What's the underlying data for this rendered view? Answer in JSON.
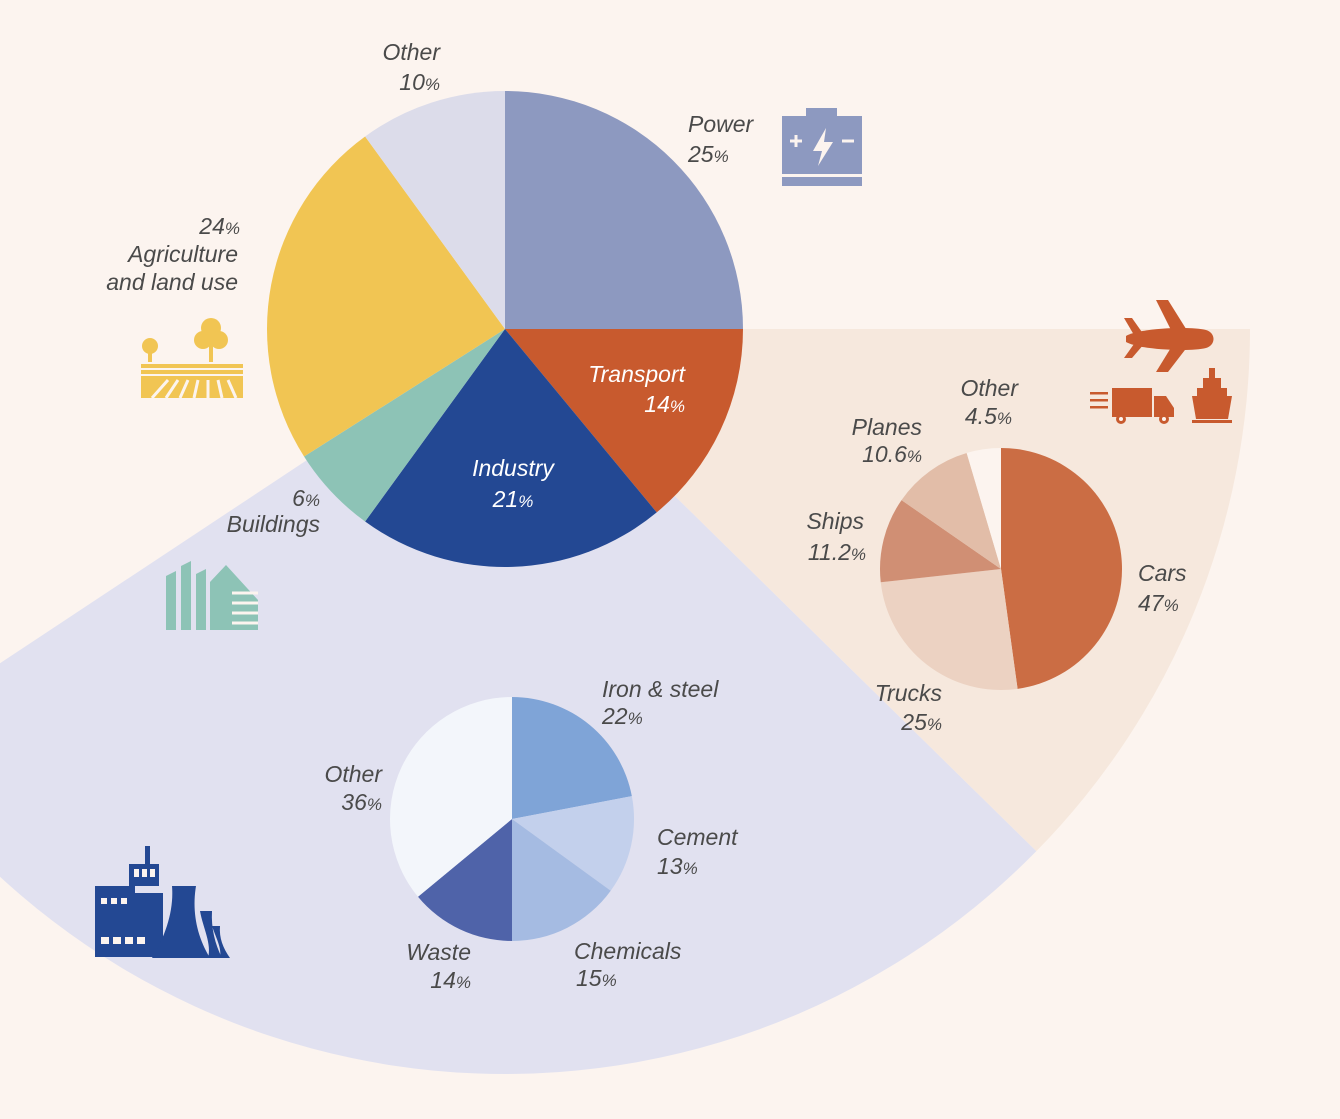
{
  "chart_data": [
    {
      "type": "pie",
      "title": "",
      "slices": [
        {
          "name": "Power",
          "value": 25,
          "label": "Power",
          "pct_text": "25",
          "color": "#8d99c0"
        },
        {
          "name": "Transport",
          "value": 14,
          "label": "Transport",
          "pct_text": "14",
          "color": "#c85a2e"
        },
        {
          "name": "Industry",
          "value": 21,
          "label": "Industry",
          "pct_text": "21",
          "color": "#234893"
        },
        {
          "name": "Buildings",
          "value": 6,
          "label": "Buildings",
          "pct_text": "6",
          "color": "#8dc3b6"
        },
        {
          "name": "Agriculture and land use",
          "value": 24,
          "label_line1": "Agriculture",
          "label_line2": "and land use",
          "pct_text": "24",
          "color": "#f1c553"
        },
        {
          "name": "Other",
          "value": 10,
          "label": "Other",
          "pct_text": "10",
          "color": "#dcdcea"
        }
      ]
    },
    {
      "type": "pie",
      "parent": "Transport",
      "slices": [
        {
          "name": "Cars",
          "value": 47,
          "label": "Cars",
          "pct_text": "47",
          "color": "#cb6d44"
        },
        {
          "name": "Trucks",
          "value": 25,
          "label": "Trucks",
          "pct_text": "25",
          "color": "#ecd2c2"
        },
        {
          "name": "Ships",
          "value": 11.2,
          "label": "Ships",
          "pct_text": "11.2",
          "color": "#d08f74"
        },
        {
          "name": "Planes",
          "value": 10.6,
          "label": "Planes",
          "pct_text": "10.6",
          "color": "#e2bda8"
        },
        {
          "name": "Other",
          "value": 4.5,
          "label": "Other",
          "pct_text": "4.5",
          "color": "#fcf4ef"
        }
      ]
    },
    {
      "type": "pie",
      "parent": "Industry",
      "slices": [
        {
          "name": "Iron & steel",
          "value": 22,
          "label": "Iron & steel",
          "pct_text": "22",
          "color": "#7fa4d7"
        },
        {
          "name": "Cement",
          "value": 13,
          "label": "Cement",
          "pct_text": "13",
          "color": "#c3d0ec"
        },
        {
          "name": "Chemicals",
          "value": 15,
          "label": "Chemicals",
          "pct_text": "15",
          "color": "#a5bbe2"
        },
        {
          "name": "Waste",
          "value": 14,
          "label": "Waste",
          "pct_text": "14",
          "color": "#4f63a9"
        },
        {
          "name": "Other",
          "value": 36,
          "label": "Other",
          "pct_text": "36",
          "color": "#f3f6fb"
        }
      ]
    }
  ],
  "percent_sign": "%",
  "icons": {
    "power": "battery-icon",
    "transport": [
      "airplane-icon",
      "truck-icon",
      "ship-icon"
    ],
    "agriculture": "field-and-trees-icon",
    "buildings": "buildings-icon",
    "industry": "factory-icon"
  },
  "colors": {
    "background": "#fcf4ef",
    "transport_fan": "#f6e8dd",
    "industry_fan": "#e1e1f0",
    "label_text": "#4a4a4a"
  }
}
